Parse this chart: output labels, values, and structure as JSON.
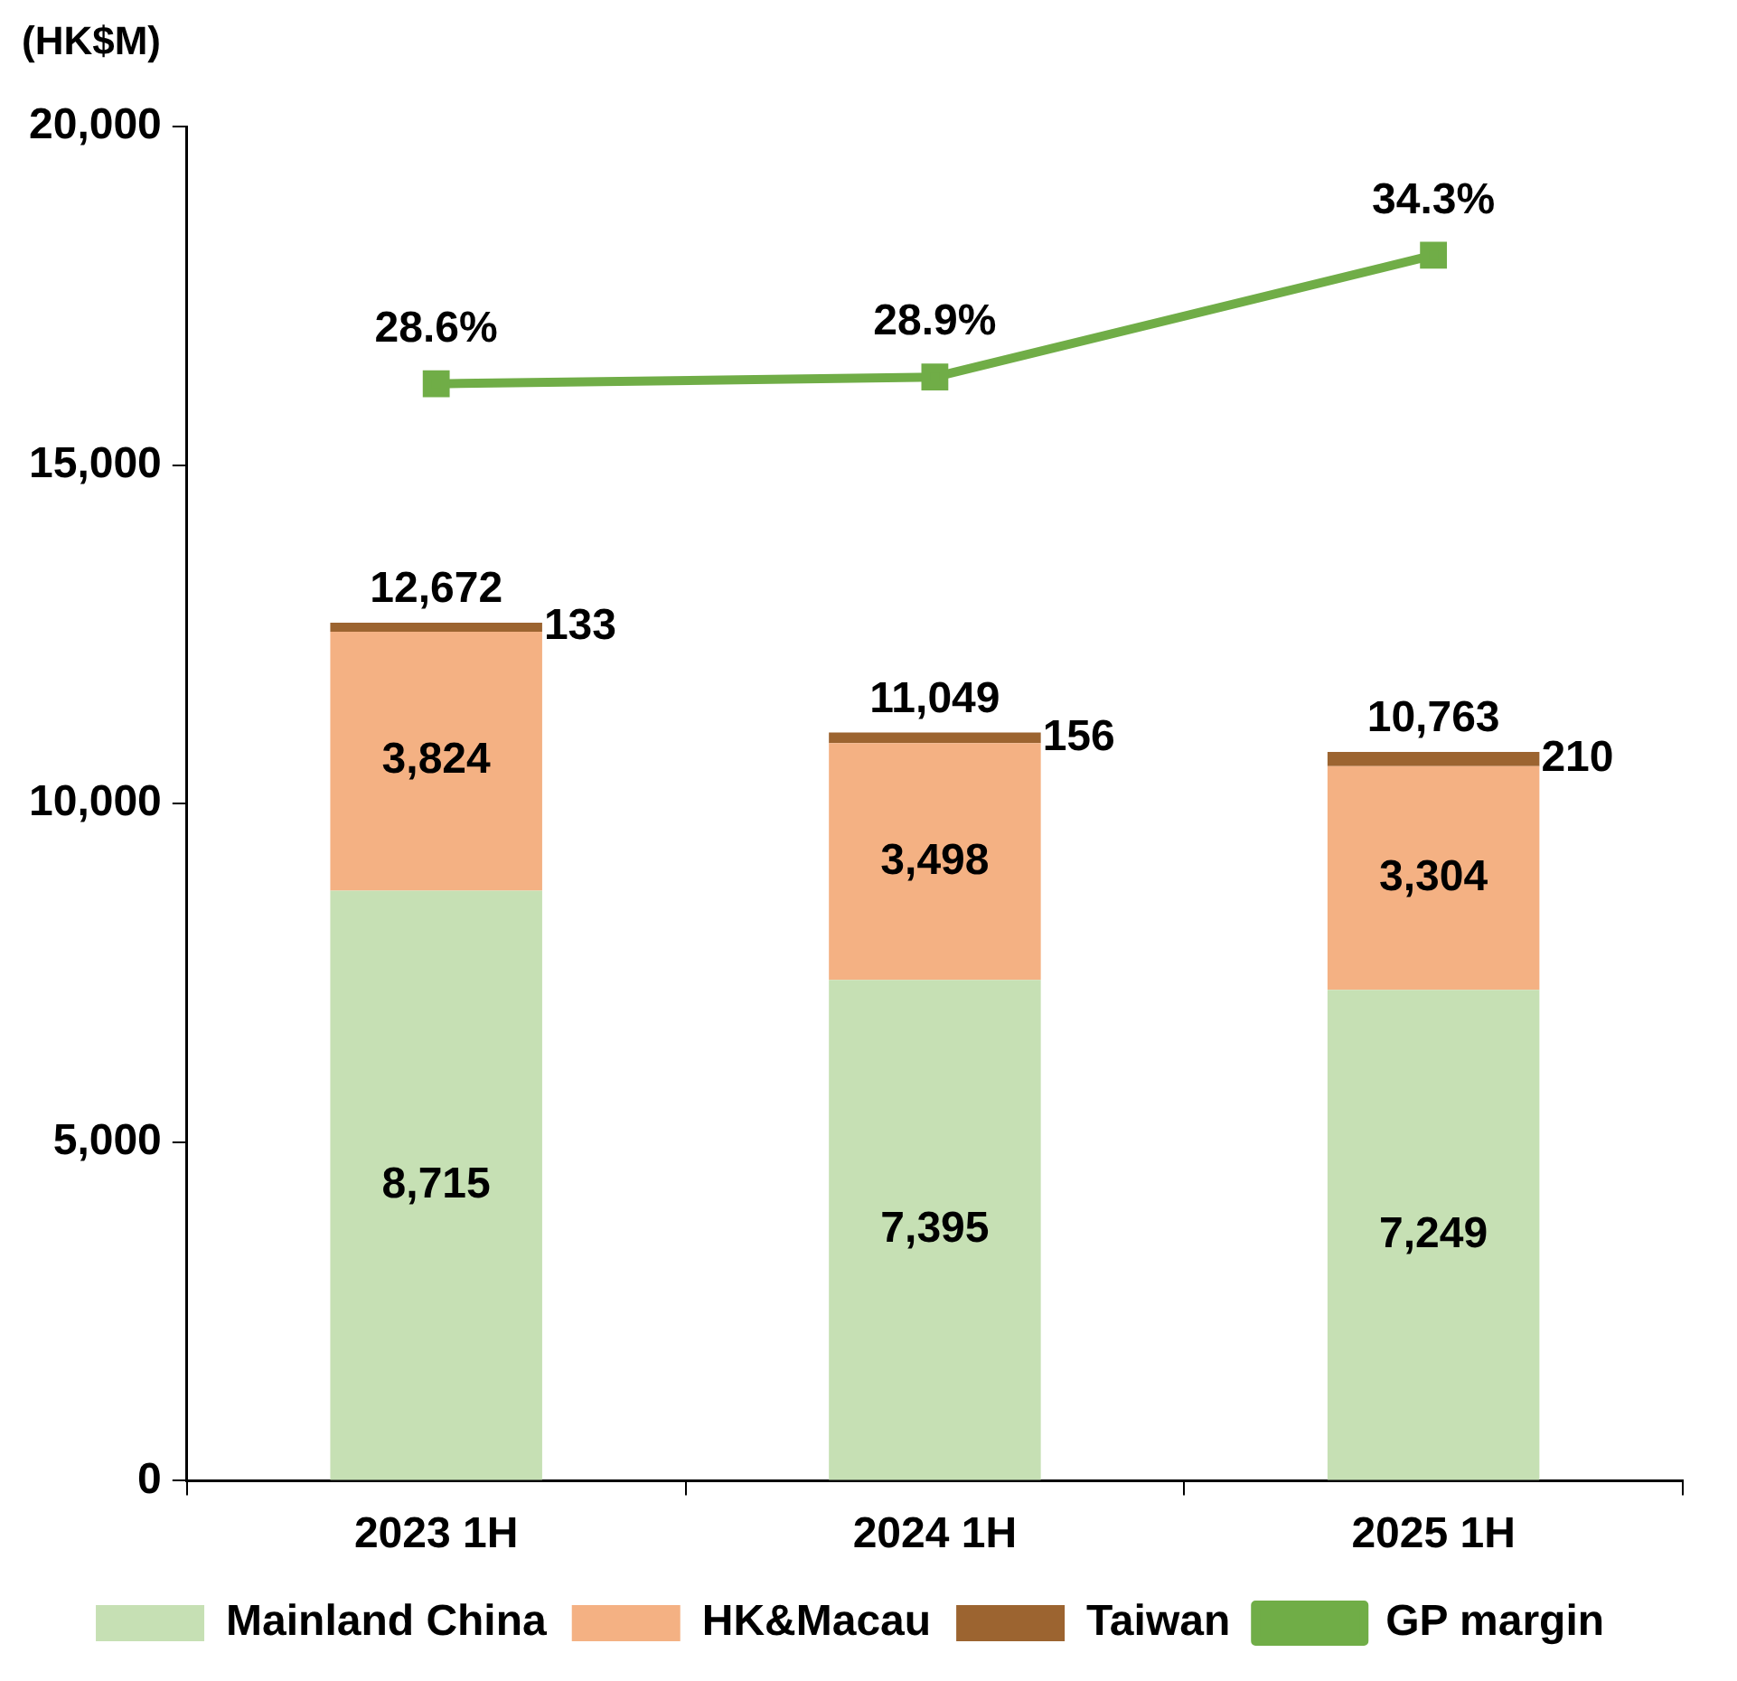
{
  "chart_data": {
    "type": "bar",
    "ylabel": "(HK$M)",
    "categories": [
      "2023 1H",
      "2024 1H",
      "2025 1H"
    ],
    "stacked": true,
    "ylim": [
      0,
      20000
    ],
    "yticks": [
      {
        "value": 0,
        "label": "0"
      },
      {
        "value": 5000,
        "label": "5,000"
      },
      {
        "value": 10000,
        "label": "10,000"
      },
      {
        "value": 15000,
        "label": "15,000"
      },
      {
        "value": 20000,
        "label": "20,000"
      }
    ],
    "y2lim": [
      -20,
      40
    ],
    "series": [
      {
        "name": "Mainland China",
        "color": "#c6e0b4",
        "values": [
          8715,
          7395,
          7249
        ],
        "value_labels": [
          "8,715",
          "7,395",
          "7,249"
        ]
      },
      {
        "name": "HK&Macau",
        "color": "#f4b183",
        "values": [
          3824,
          3498,
          3304
        ],
        "value_labels": [
          "3,824",
          "3,498",
          "3,304"
        ]
      },
      {
        "name": "Taiwan",
        "color": "#9c6430",
        "values": [
          133,
          156,
          210
        ],
        "value_labels": [
          "133",
          "156",
          "210"
        ]
      },
      {
        "name": "GP margin",
        "type": "line",
        "axis": "y2",
        "color": "#70ad47",
        "marker": "square",
        "values": [
          28.6,
          28.9,
          34.3
        ],
        "value_labels": [
          "28.6%",
          "28.9%",
          "34.3%"
        ]
      }
    ],
    "totals": [
      "12,672",
      "11,049",
      "10,763"
    ],
    "legend": "bottom"
  }
}
